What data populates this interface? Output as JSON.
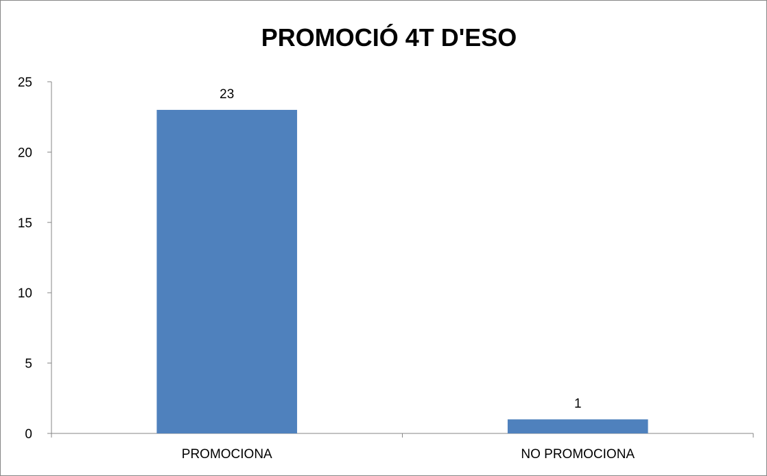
{
  "chart_data": {
    "type": "bar",
    "title": "PROMOCIÓ 4T D'ESO",
    "xlabel": "",
    "ylabel": "",
    "categories": [
      "PROMOCIONA",
      "NO PROMOCIONA"
    ],
    "values": [
      23,
      1
    ],
    "data_labels": [
      "23",
      "1"
    ],
    "ylim": [
      0,
      25
    ],
    "yticks": [
      0,
      5,
      10,
      15,
      20,
      25
    ],
    "ytick_labels": [
      "0",
      "5",
      "10",
      "15",
      "20",
      "25"
    ],
    "grid": false,
    "legend": "none",
    "bar_color": "#4f81bd",
    "axis_color": "#868686"
  }
}
